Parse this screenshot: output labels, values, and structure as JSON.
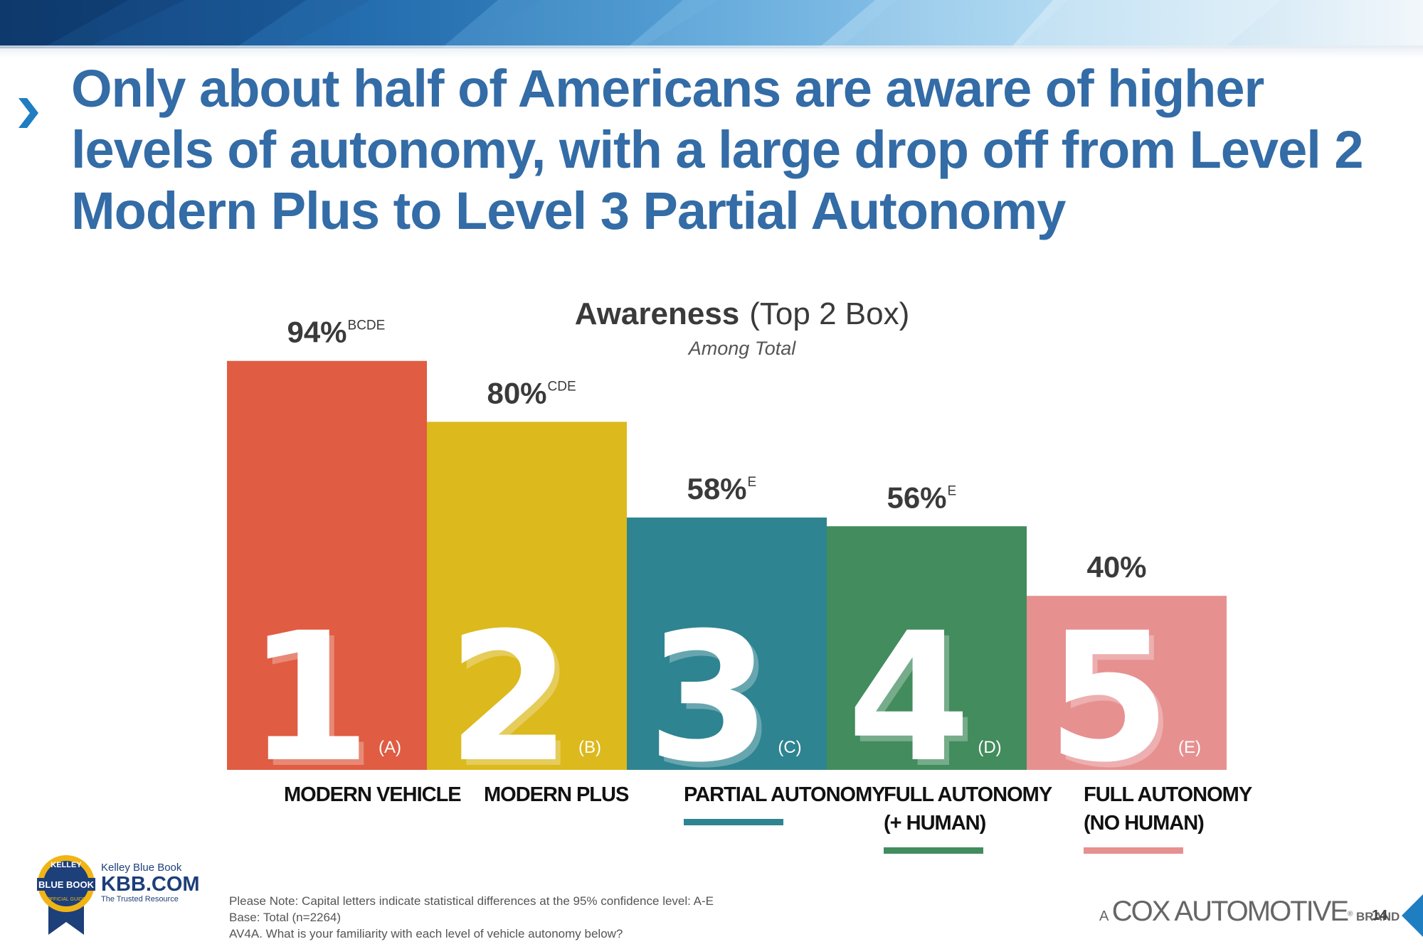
{
  "slide": {
    "title": "Only about half of Americans are aware of higher levels of autonomy, with a large drop off from Level 2 Modern Plus to Level 3 Partial Autonomy",
    "page_number": "14"
  },
  "chart_data": {
    "type": "bar",
    "title": "Awareness",
    "title_suffix": "(Top 2 Box)",
    "subtitle": "Among Total",
    "ylim": [
      0,
      100
    ],
    "value_format": "percent",
    "categories": [
      "MODERN VEHICLE",
      "MODERN PLUS",
      "PARTIAL AUTONOMY",
      "FULL AUTONOMY (+ HUMAN)",
      "FULL AUTONOMY (NO HUMAN)"
    ],
    "bars": [
      {
        "level": "1",
        "code": "(A)",
        "value": 94,
        "value_label": "94%",
        "significance": "BCDE",
        "label_lines": [
          "MODERN VEHICLE"
        ],
        "color": "#e05c42",
        "underline_color": null
      },
      {
        "level": "2",
        "code": "(B)",
        "value": 80,
        "value_label": "80%",
        "significance": "CDE",
        "label_lines": [
          "MODERN PLUS"
        ],
        "color": "#dcb91c",
        "underline_color": null
      },
      {
        "level": "3",
        "code": "(C)",
        "value": 58,
        "value_label": "58%",
        "significance": "E",
        "label_lines": [
          "PARTIAL AUTONOMY"
        ],
        "color": "#2e8490",
        "underline_color": "#2e8490"
      },
      {
        "level": "4",
        "code": "(D)",
        "value": 56,
        "value_label": "56%",
        "significance": "E",
        "label_lines": [
          "FULL AUTONOMY",
          "(+ HUMAN)"
        ],
        "color": "#428c5e",
        "underline_color": "#428c5e"
      },
      {
        "level": "5",
        "code": "(E)",
        "value": 40,
        "value_label": "40%",
        "significance": "",
        "label_lines": [
          "FULL AUTONOMY",
          "(NO HUMAN)"
        ],
        "color": "#e79090",
        "underline_color": "#e79090"
      }
    ]
  },
  "footer": {
    "notes": [
      "Please Note: Capital letters indicate statistical differences at the 95% confidence level: A-E",
      "Base: Total (n=2264)",
      "AV4A. What is your familiarity with each level of vehicle autonomy below?"
    ],
    "kbb_badge_top": "KELLEY",
    "kbb_badge_main": "BLUE BOOK",
    "kbb_badge_bottom": "OFFICIAL GUIDE",
    "kbb_brand": "Kelley Blue Book",
    "kbb_url": "KBB.COM",
    "kbb_tagline": "The Trusted Resource",
    "cox_prefix": "A",
    "cox_name": "COX AUTOMOTIVE",
    "cox_mark": "®",
    "cox_suffix": "BRAND"
  },
  "colors": {
    "title": "#336ca6",
    "accent_blue": "#1f7dc2"
  }
}
